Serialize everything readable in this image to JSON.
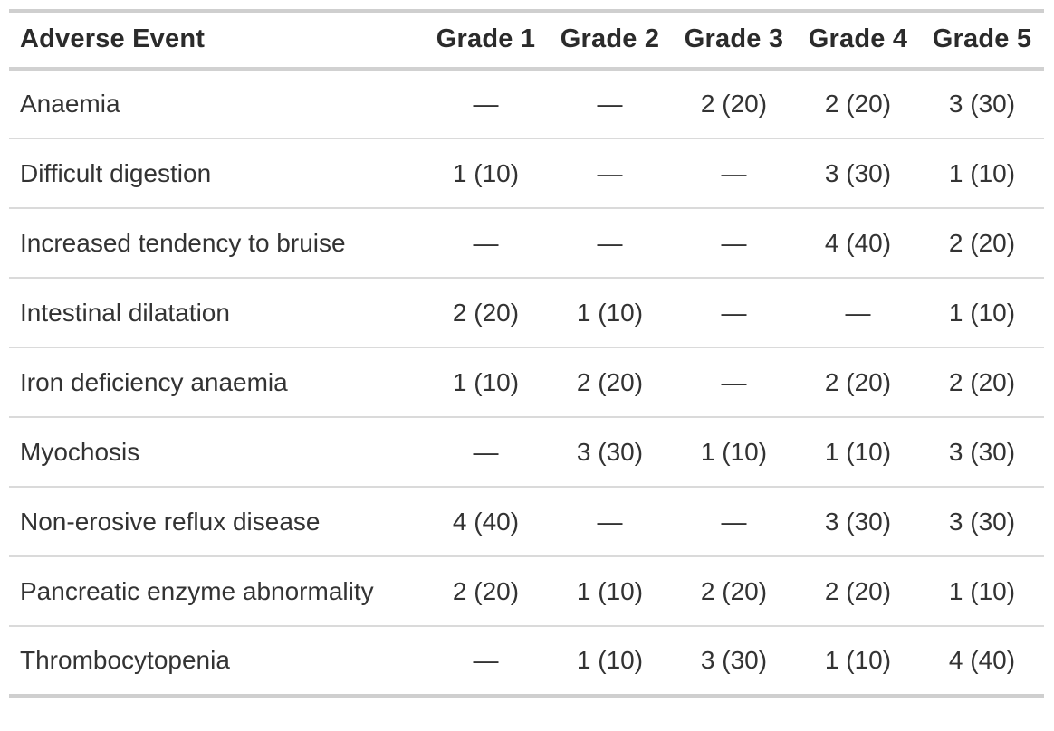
{
  "colors": {
    "background": "#ffffff",
    "border_heavy": "#cfcfcf",
    "border_light": "#dadada",
    "header_text": "#2b2b2b",
    "body_text": "#333333"
  },
  "table": {
    "empty_marker": "—",
    "value_format": "n (%)",
    "columns": [
      "Adverse Event",
      "Grade 1",
      "Grade 2",
      "Grade 3",
      "Grade 4",
      "Grade 5"
    ],
    "rows": [
      {
        "event": "Anaemia",
        "values": [
          "—",
          "—",
          "2 (20)",
          "2 (20)",
          "3 (30)"
        ]
      },
      {
        "event": "Difficult digestion",
        "values": [
          "1 (10)",
          "—",
          "—",
          "3 (30)",
          "1 (10)"
        ]
      },
      {
        "event": "Increased tendency to bruise",
        "values": [
          "—",
          "—",
          "—",
          "4 (40)",
          "2 (20)"
        ]
      },
      {
        "event": "Intestinal dilatation",
        "values": [
          "2 (20)",
          "1 (10)",
          "—",
          "—",
          "1 (10)"
        ]
      },
      {
        "event": "Iron deficiency anaemia",
        "values": [
          "1 (10)",
          "2 (20)",
          "—",
          "2 (20)",
          "2 (20)"
        ]
      },
      {
        "event": "Myochosis",
        "values": [
          "—",
          "3 (30)",
          "1 (10)",
          "1 (10)",
          "3 (30)"
        ]
      },
      {
        "event": "Non-erosive reflux disease",
        "values": [
          "4 (40)",
          "—",
          "—",
          "3 (30)",
          "3 (30)"
        ]
      },
      {
        "event": "Pancreatic enzyme abnormality",
        "values": [
          "2 (20)",
          "1 (10)",
          "2 (20)",
          "2 (20)",
          "1 (10)"
        ]
      },
      {
        "event": "Thrombocytopenia",
        "values": [
          "—",
          "1 (10)",
          "3 (30)",
          "1 (10)",
          "4 (40)"
        ]
      }
    ]
  }
}
